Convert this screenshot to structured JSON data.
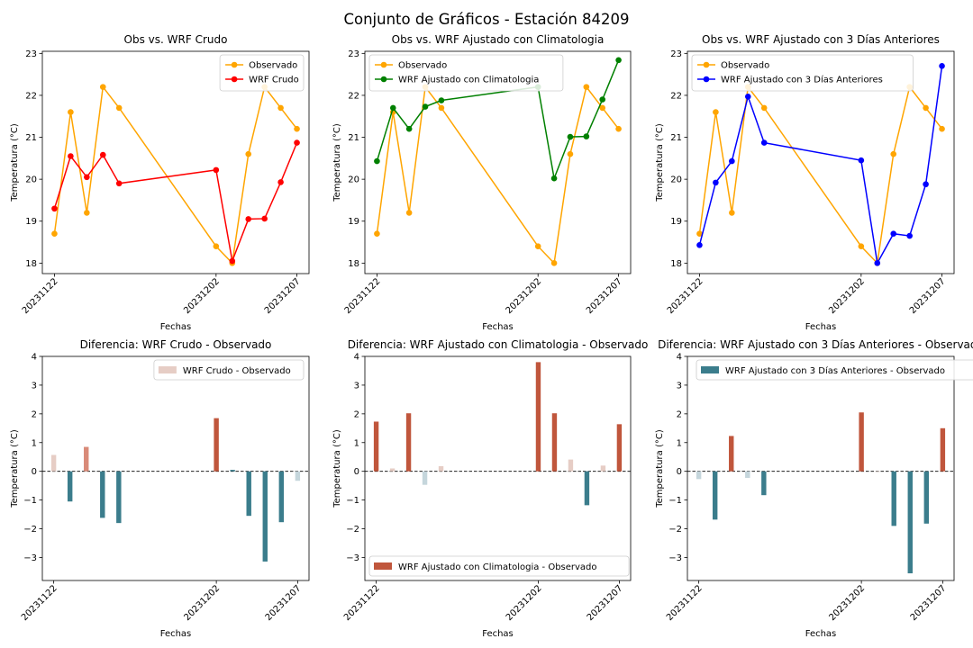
{
  "figure": {
    "title": "Conjunto de Gráficos - Estación 84209"
  },
  "chart_data": [
    {
      "type": "line",
      "title": "Obs vs. WRF Crudo",
      "xlabel": "Fechas",
      "ylabel": "Temperatura (°C)",
      "x": [
        "20231122",
        "20231123",
        "20231124",
        "20231125",
        "20231126",
        "20231127",
        "20231128",
        "20231129",
        "20231130",
        "20231201",
        "20231202",
        "20231203",
        "20231204",
        "20231205",
        "20231206",
        "20231207"
      ],
      "xticks": [
        "20231122",
        "20231202",
        "20231207"
      ],
      "yticks": [
        18,
        19,
        20,
        21,
        22,
        23
      ],
      "ylim": [
        17.75,
        23.05
      ],
      "legend": "top-right",
      "series": [
        {
          "name": "Observado",
          "color": "#ffa500",
          "points": [
            [
              "20231122",
              18.7
            ],
            [
              "20231123",
              21.6
            ],
            [
              "20231124",
              19.2
            ],
            [
              "20231125",
              22.2
            ],
            [
              "20231126",
              21.7
            ],
            [
              "20231202",
              18.4
            ],
            [
              "20231203",
              18.0
            ],
            [
              "20231204",
              20.6
            ],
            [
              "20231205",
              22.2
            ],
            [
              "20231206",
              21.7
            ],
            [
              "20231207",
              21.2
            ]
          ]
        },
        {
          "name": "WRF Crudo",
          "color": "#ff0000",
          "points": [
            [
              "20231122",
              19.3
            ],
            [
              "20231123",
              20.55
            ],
            [
              "20231124",
              20.05
            ],
            [
              "20231125",
              20.58
            ],
            [
              "20231126",
              19.9
            ],
            [
              "20231202",
              20.22
            ],
            [
              "20231203",
              18.05
            ],
            [
              "20231204",
              19.05
            ],
            [
              "20231205",
              19.06
            ],
            [
              "20231206",
              19.93
            ],
            [
              "20231207",
              20.87
            ]
          ]
        }
      ]
    },
    {
      "type": "line",
      "title": "Obs vs. WRF Ajustado con Climatologia",
      "xlabel": "Fechas",
      "ylabel": "Temperatura (°C)",
      "x": [
        "20231122",
        "20231123",
        "20231124",
        "20231125",
        "20231126",
        "20231127",
        "20231128",
        "20231129",
        "20231130",
        "20231201",
        "20231202",
        "20231203",
        "20231204",
        "20231205",
        "20231206",
        "20231207"
      ],
      "xticks": [
        "20231122",
        "20231202",
        "20231207"
      ],
      "yticks": [
        18,
        19,
        20,
        21,
        22,
        23
      ],
      "ylim": [
        17.75,
        23.05
      ],
      "legend": "top-left",
      "series": [
        {
          "name": "Observado",
          "color": "#ffa500",
          "points": [
            [
              "20231122",
              18.7
            ],
            [
              "20231123",
              21.6
            ],
            [
              "20231124",
              19.2
            ],
            [
              "20231125",
              22.2
            ],
            [
              "20231126",
              21.7
            ],
            [
              "20231202",
              18.4
            ],
            [
              "20231203",
              18.0
            ],
            [
              "20231204",
              20.6
            ],
            [
              "20231205",
              22.2
            ],
            [
              "20231206",
              21.7
            ],
            [
              "20231207",
              21.2
            ]
          ]
        },
        {
          "name": "WRF Ajustado con Climatologia",
          "color": "#008000",
          "points": [
            [
              "20231122",
              20.43
            ],
            [
              "20231123",
              21.7
            ],
            [
              "20231124",
              21.2
            ],
            [
              "20231125",
              21.73
            ],
            [
              "20231126",
              21.88
            ],
            [
              "20231202",
              22.2
            ],
            [
              "20231203",
              20.02
            ],
            [
              "20231204",
              21.01
            ],
            [
              "20231205",
              21.02
            ],
            [
              "20231206",
              21.9
            ],
            [
              "20231207",
              22.84
            ]
          ]
        }
      ]
    },
    {
      "type": "line",
      "title": "Obs vs. WRF Ajustado con 3 Días Anteriores",
      "xlabel": "Fechas",
      "ylabel": "Temperatura (°C)",
      "x": [
        "20231122",
        "20231123",
        "20231124",
        "20231125",
        "20231126",
        "20231127",
        "20231128",
        "20231129",
        "20231130",
        "20231201",
        "20231202",
        "20231203",
        "20231204",
        "20231205",
        "20231206",
        "20231207"
      ],
      "xticks": [
        "20231122",
        "20231202",
        "20231207"
      ],
      "yticks": [
        18,
        19,
        20,
        21,
        22,
        23
      ],
      "ylim": [
        17.75,
        23.05
      ],
      "legend": "top-left",
      "series": [
        {
          "name": "Observado",
          "color": "#ffa500",
          "points": [
            [
              "20231122",
              18.7
            ],
            [
              "20231123",
              21.6
            ],
            [
              "20231124",
              19.2
            ],
            [
              "20231125",
              22.2
            ],
            [
              "20231126",
              21.7
            ],
            [
              "20231202",
              18.4
            ],
            [
              "20231203",
              18.0
            ],
            [
              "20231204",
              20.6
            ],
            [
              "20231205",
              22.2
            ],
            [
              "20231206",
              21.7
            ],
            [
              "20231207",
              21.2
            ]
          ]
        },
        {
          "name": "WRF Ajustado con 3 Días Anteriores",
          "color": "#0000ff",
          "points": [
            [
              "20231122",
              18.43
            ],
            [
              "20231123",
              19.92
            ],
            [
              "20231124",
              20.43
            ],
            [
              "20231125",
              21.97
            ],
            [
              "20231126",
              20.87
            ],
            [
              "20231202",
              20.45
            ],
            [
              "20231203",
              18.0
            ],
            [
              "20231204",
              18.7
            ],
            [
              "20231205",
              18.65
            ],
            [
              "20231206",
              19.88
            ],
            [
              "20231207",
              22.7
            ]
          ]
        }
      ]
    },
    {
      "type": "bar",
      "title": "Diferencia: WRF Crudo - Observado",
      "xlabel": "Fechas",
      "ylabel": "Temperatura (°C)",
      "x": [
        "20231122",
        "20231123",
        "20231124",
        "20231125",
        "20231126",
        "20231127",
        "20231128",
        "20231129",
        "20231130",
        "20231201",
        "20231202",
        "20231203",
        "20231204",
        "20231205",
        "20231206",
        "20231207"
      ],
      "xticks": [
        "20231122",
        "20231202",
        "20231207"
      ],
      "yticks": [
        -3,
        -2,
        -1,
        0,
        1,
        2,
        3,
        4
      ],
      "ylim": [
        -3.8,
        4.0
      ],
      "legend": "top-right",
      "legend_label": "WRF Crudo - Observado",
      "legend_color": "#e6cdc5",
      "colors": {
        "positive": "#c0563c",
        "negative": "#3b7d8c",
        "positive_light": "#e6cdc5",
        "negative_light": "#c5d6dc"
      },
      "values": [
        0.57,
        -1.05,
        0.85,
        -1.62,
        -1.8,
        1.85,
        0.05,
        -1.55,
        -3.14,
        -1.77,
        -0.33
      ],
      "dates": [
        "20231122",
        "20231123",
        "20231124",
        "20231125",
        "20231126",
        "20231202",
        "20231203",
        "20231204",
        "20231205",
        "20231206",
        "20231207"
      ]
    },
    {
      "type": "bar",
      "title": "Diferencia: WRF Ajustado con Climatologia - Observado",
      "xlabel": "Fechas",
      "ylabel": "Temperatura (°C)",
      "x": [
        "20231122",
        "20231123",
        "20231124",
        "20231125",
        "20231126",
        "20231127",
        "20231128",
        "20231129",
        "20231130",
        "20231201",
        "20231202",
        "20231203",
        "20231204",
        "20231205",
        "20231206",
        "20231207"
      ],
      "xticks": [
        "20231122",
        "20231202",
        "20231207"
      ],
      "yticks": [
        -3,
        -2,
        -1,
        0,
        1,
        2,
        3,
        4
      ],
      "ylim": [
        -3.8,
        4.0
      ],
      "legend": "bottom-left",
      "legend_label": "WRF Ajustado con Climatologia - Observado",
      "legend_color": "#c0563c",
      "colors": {
        "positive": "#c0563c",
        "negative": "#3b7d8c",
        "positive_light": "#e6cdc5",
        "negative_light": "#c5d6dc"
      },
      "values": [
        1.73,
        0.1,
        2.02,
        -0.47,
        0.18,
        3.8,
        2.02,
        0.41,
        -1.18,
        0.2,
        1.64
      ],
      "dates": [
        "20231122",
        "20231123",
        "20231124",
        "20231125",
        "20231126",
        "20231202",
        "20231203",
        "20231204",
        "20231205",
        "20231206",
        "20231207"
      ]
    },
    {
      "type": "bar",
      "title": "Diferencia: WRF Ajustado con 3 Días Anteriores - Observado",
      "xlabel": "Fechas",
      "ylabel": "Temperatura (°C)",
      "x": [
        "20231122",
        "20231123",
        "20231124",
        "20231125",
        "20231126",
        "20231127",
        "20231128",
        "20231129",
        "20231130",
        "20231201",
        "20231202",
        "20231203",
        "20231204",
        "20231205",
        "20231206",
        "20231207"
      ],
      "xticks": [
        "20231122",
        "20231202",
        "20231207"
      ],
      "yticks": [
        -3,
        -2,
        -1,
        0,
        1,
        2,
        3,
        4
      ],
      "ylim": [
        -3.8,
        4.0
      ],
      "legend": "top-left",
      "legend_label": "WRF Ajustado con 3 Días Anteriores - Observado",
      "legend_color": "#3b7d8c",
      "colors": {
        "positive": "#c0563c",
        "negative": "#3b7d8c",
        "positive_light": "#e6cdc5",
        "negative_light": "#c5d6dc"
      },
      "values": [
        -0.27,
        -1.68,
        1.23,
        -0.23,
        -0.83,
        2.05,
        0.0,
        -1.9,
        -3.55,
        -1.82,
        1.5
      ],
      "dates": [
        "20231122",
        "20231123",
        "20231124",
        "20231125",
        "20231126",
        "20231202",
        "20231203",
        "20231204",
        "20231205",
        "20231206",
        "20231207"
      ]
    }
  ]
}
